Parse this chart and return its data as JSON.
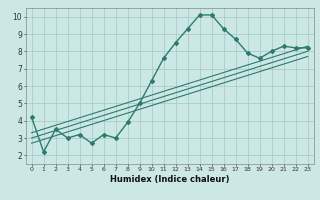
{
  "title": "",
  "xlabel": "Humidex (Indice chaleur)",
  "ylabel": "",
  "background_color": "#cce8e4",
  "grid_color": "#aacccc",
  "line_color": "#2d7a6e",
  "xlim": [
    -0.5,
    23.5
  ],
  "ylim": [
    1.5,
    10.5
  ],
  "xticks": [
    0,
    1,
    2,
    3,
    4,
    5,
    6,
    7,
    8,
    9,
    10,
    11,
    12,
    13,
    14,
    15,
    16,
    17,
    18,
    19,
    20,
    21,
    22,
    23
  ],
  "yticks": [
    2,
    3,
    4,
    5,
    6,
    7,
    8,
    9,
    10
  ],
  "main_x": [
    0,
    1,
    2,
    3,
    4,
    5,
    6,
    7,
    8,
    9,
    10,
    11,
    12,
    13,
    14,
    15,
    16,
    17,
    18,
    19,
    20,
    21,
    22,
    23
  ],
  "main_y": [
    4.2,
    2.2,
    3.5,
    3.0,
    3.2,
    2.7,
    3.2,
    3.0,
    3.9,
    5.0,
    6.3,
    7.6,
    8.5,
    9.3,
    10.1,
    10.1,
    9.3,
    8.7,
    7.9,
    7.6,
    8.0,
    8.3,
    8.2,
    8.2
  ],
  "line1_x": [
    0,
    23
  ],
  "line1_y": [
    3.3,
    8.3
  ],
  "line2_x": [
    0,
    23
  ],
  "line2_y": [
    3.0,
    8.0
  ],
  "line3_x": [
    0,
    23
  ],
  "line3_y": [
    2.7,
    7.7
  ]
}
